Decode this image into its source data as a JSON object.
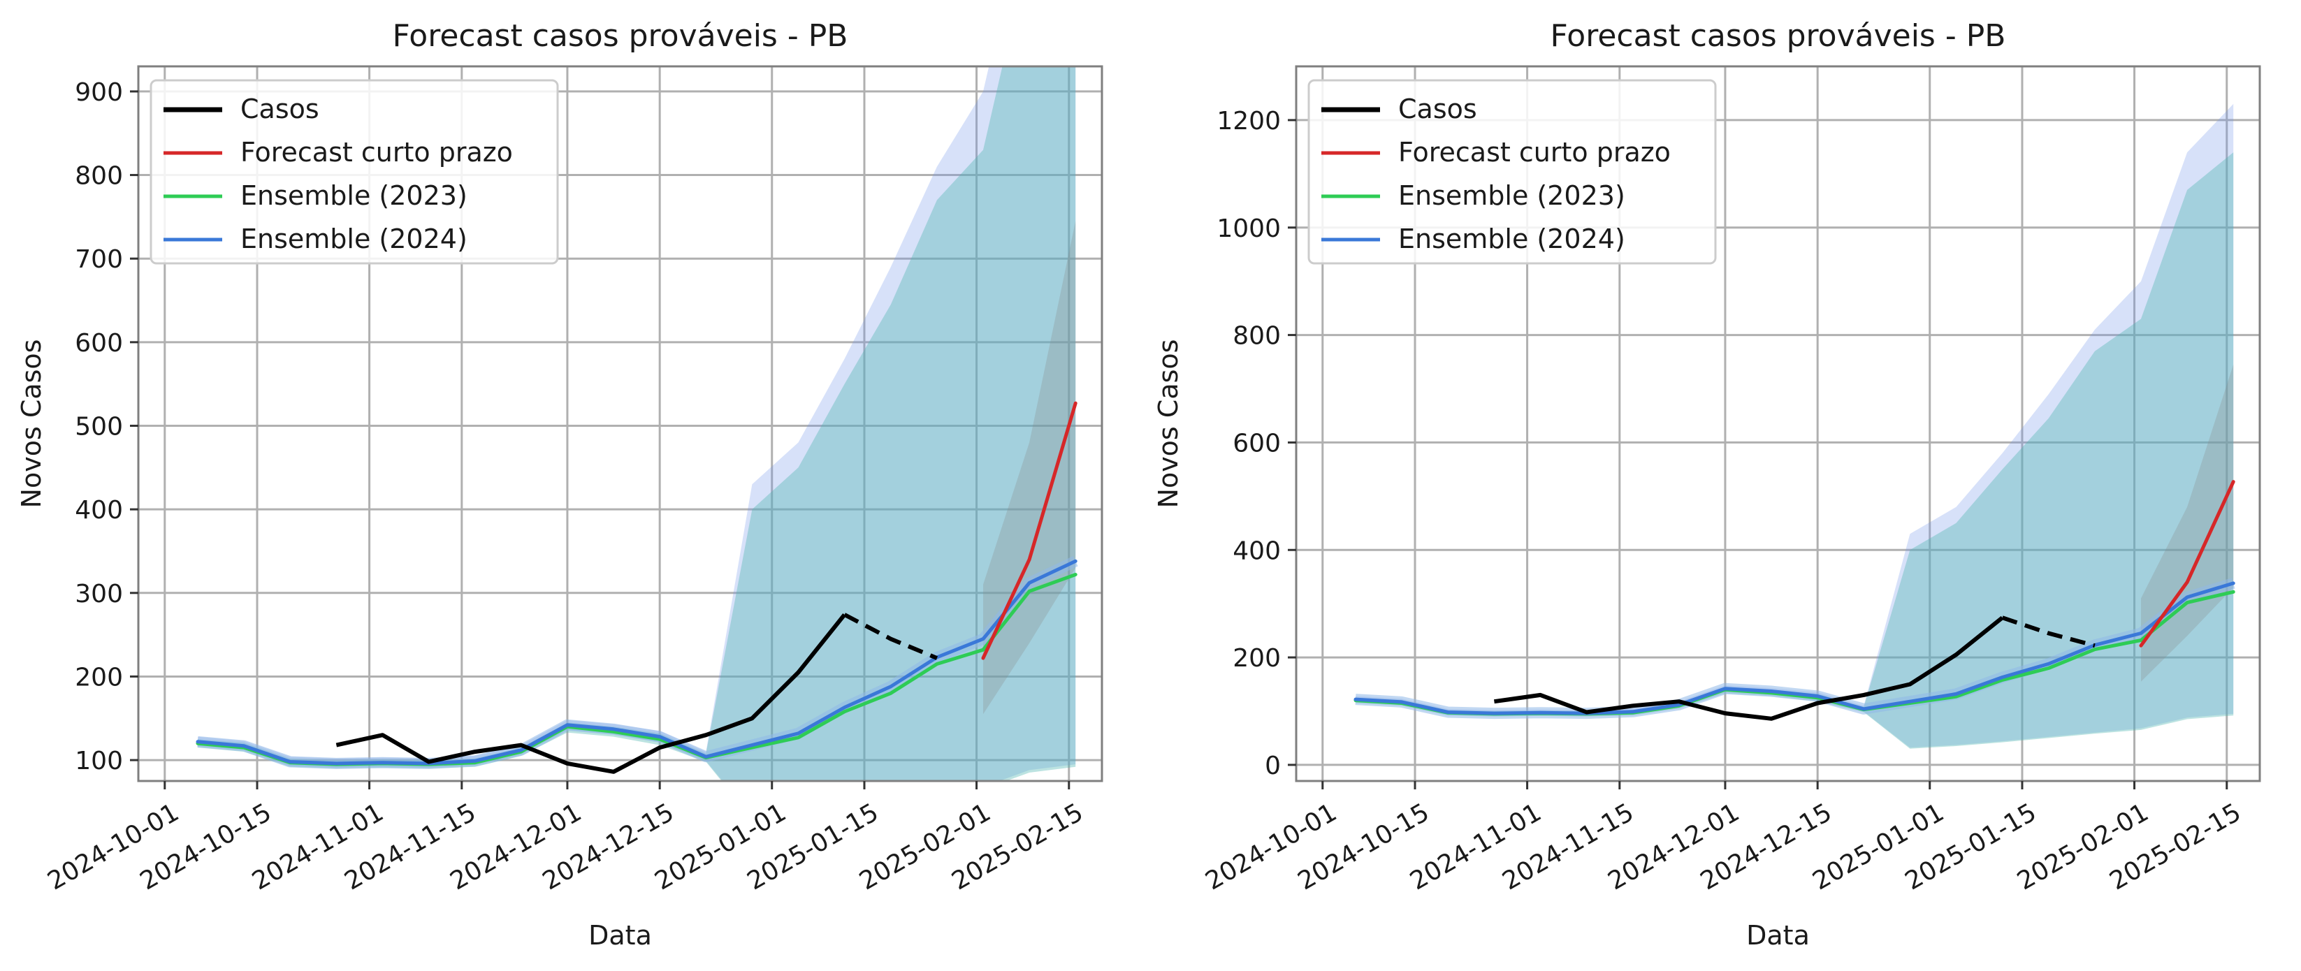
{
  "chart_data": [
    {
      "type": "line",
      "title": "Forecast casos prováveis - PB",
      "xlabel": "Data",
      "ylabel": "Novos Casos",
      "xlim": [
        "2024-09-27",
        "2025-02-20"
      ],
      "ylim": [
        75,
        930
      ],
      "x_ticks": [
        "2024-10-01",
        "2024-10-15",
        "2024-11-01",
        "2024-11-15",
        "2024-12-01",
        "2024-12-15",
        "2025-01-01",
        "2025-01-15",
        "2025-02-01",
        "2025-02-15"
      ],
      "y_ticks": [
        100,
        200,
        300,
        400,
        500,
        600,
        700,
        800,
        900
      ],
      "grid": true,
      "legend_position": "upper-left"
    },
    {
      "type": "line",
      "title": "Forecast casos prováveis - PB",
      "xlabel": "Data",
      "ylabel": "Novos Casos",
      "xlim": [
        "2024-09-27",
        "2025-02-20"
      ],
      "ylim": [
        -30,
        1300
      ],
      "x_ticks": [
        "2024-10-01",
        "2024-10-15",
        "2024-11-01",
        "2024-11-15",
        "2024-12-01",
        "2024-12-15",
        "2025-01-01",
        "2025-01-15",
        "2025-02-01",
        "2025-02-15"
      ],
      "y_ticks": [
        0,
        200,
        400,
        600,
        800,
        1000,
        1200
      ],
      "grid": true,
      "legend_position": "upper-left"
    }
  ],
  "series": {
    "casos": {
      "name": "Casos",
      "color": "#000000",
      "x": [
        "2024-10-27",
        "2024-11-03",
        "2024-11-10",
        "2024-11-17",
        "2024-11-24",
        "2024-12-01",
        "2024-12-08",
        "2024-12-15",
        "2024-12-22",
        "2024-12-29",
        "2025-01-05",
        "2025-01-12",
        "2025-01-19",
        "2025-01-26"
      ],
      "y": [
        118,
        130,
        98,
        110,
        118,
        96,
        86,
        115,
        130,
        150,
        205,
        274,
        245,
        222
      ]
    },
    "forecast_curto_prazo": {
      "name": "Forecast curto prazo",
      "color": "#d62728",
      "x": [
        "2025-02-02",
        "2025-02-09",
        "2025-02-16"
      ],
      "y": [
        222,
        340,
        527
      ],
      "lower": [
        155,
        240,
        330
      ],
      "upper": [
        310,
        480,
        745
      ]
    },
    "ensemble_2023": {
      "name": "Ensemble (2023)",
      "color": "#2ecc55",
      "x": [
        "2024-10-06",
        "2024-10-13",
        "2024-10-20",
        "2024-10-27",
        "2024-11-03",
        "2024-11-10",
        "2024-11-17",
        "2024-11-24",
        "2024-12-01",
        "2024-12-08",
        "2024-12-15",
        "2024-12-22",
        "2024-12-29",
        "2025-01-05",
        "2025-01-12",
        "2025-01-19",
        "2025-01-26",
        "2025-02-02",
        "2025-02-09",
        "2025-02-16"
      ],
      "y": [
        120,
        115,
        97,
        95,
        96,
        95,
        97,
        110,
        140,
        134,
        125,
        103,
        115,
        127,
        158,
        180,
        215,
        232,
        302,
        322
      ],
      "lower": [
        115,
        110,
        92,
        90,
        91,
        90,
        92,
        105,
        133,
        128,
        118,
        98,
        30,
        35,
        42,
        50,
        58,
        65,
        85,
        92
      ],
      "upper": [
        125,
        121,
        102,
        100,
        101,
        100,
        102,
        115,
        145,
        140,
        132,
        108,
        400,
        450,
        550,
        645,
        770,
        830,
        1070,
        1140
      ]
    },
    "ensemble_2024": {
      "name": "Ensemble (2024)",
      "color": "#3a78d8",
      "x": [
        "2024-10-06",
        "2024-10-13",
        "2024-10-20",
        "2024-10-27",
        "2024-11-03",
        "2024-11-10",
        "2024-11-17",
        "2024-11-24",
        "2024-12-01",
        "2024-12-08",
        "2024-12-15",
        "2024-12-22",
        "2024-12-29",
        "2025-01-05",
        "2025-01-12",
        "2025-01-19",
        "2025-01-26",
        "2025-02-02",
        "2025-02-09",
        "2025-02-16"
      ],
      "y": [
        122,
        117,
        98,
        96,
        97,
        96,
        99,
        112,
        142,
        137,
        128,
        104,
        118,
        132,
        163,
        188,
        223,
        245,
        312,
        338
      ],
      "lower": [
        117,
        112,
        93,
        91,
        92,
        91,
        94,
        107,
        136,
        131,
        121,
        99,
        32,
        37,
        44,
        52,
        60,
        68,
        88,
        95
      ],
      "upper": [
        128,
        123,
        104,
        102,
        103,
        102,
        105,
        118,
        148,
        143,
        135,
        110,
        430,
        480,
        580,
        690,
        810,
        900,
        1140,
        1230
      ]
    }
  },
  "legend": {
    "items": [
      {
        "label": "Casos",
        "color": "#000000"
      },
      {
        "label": "Forecast curto prazo",
        "color": "#d62728"
      },
      {
        "label": "Ensemble (2023)",
        "color": "#2ecc55"
      },
      {
        "label": "Ensemble (2024)",
        "color": "#3a78d8"
      }
    ]
  }
}
